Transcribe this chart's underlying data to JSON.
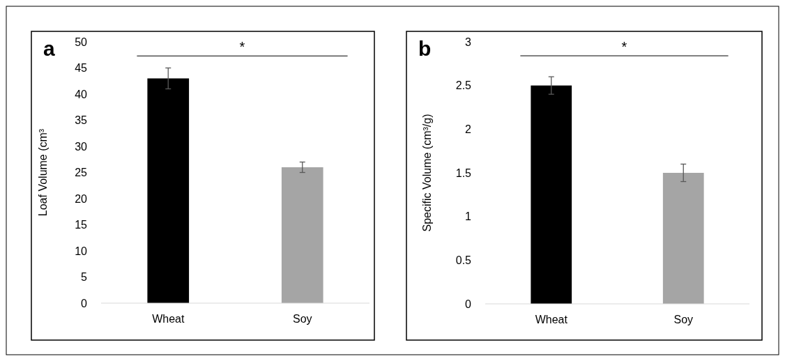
{
  "chart_data": [
    {
      "type": "bar",
      "title": "a",
      "ylabel": "Loaf Volume (cm³",
      "categories": [
        "Wheat",
        "Soy"
      ],
      "values": [
        43,
        26
      ],
      "colors": [
        "#000000",
        "#a5a5a5"
      ],
      "errors": [
        2,
        1
      ],
      "ylim": [
        0,
        50
      ],
      "yticks": [
        0,
        5,
        10,
        15,
        20,
        25,
        30,
        35,
        40,
        45,
        50
      ],
      "ref_lines": [
        {
          "axis": "y",
          "value": 47.3,
          "label": "*",
          "color": "#000000"
        }
      ]
    },
    {
      "type": "bar",
      "title": "b",
      "ylabel": "Specific Volume (cm³/g)",
      "categories": [
        "Wheat",
        "Soy"
      ],
      "values": [
        2.5,
        1.5
      ],
      "colors": [
        "#000000",
        "#a5a5a5"
      ],
      "errors": [
        0.1,
        0.1
      ],
      "ylim": [
        0,
        3
      ],
      "yticks": [
        0,
        0.5,
        1,
        1.5,
        2,
        2.5,
        3
      ],
      "ref_lines": [
        {
          "axis": "y",
          "value": 2.84,
          "label": "*",
          "color": "#000000"
        }
      ]
    }
  ]
}
